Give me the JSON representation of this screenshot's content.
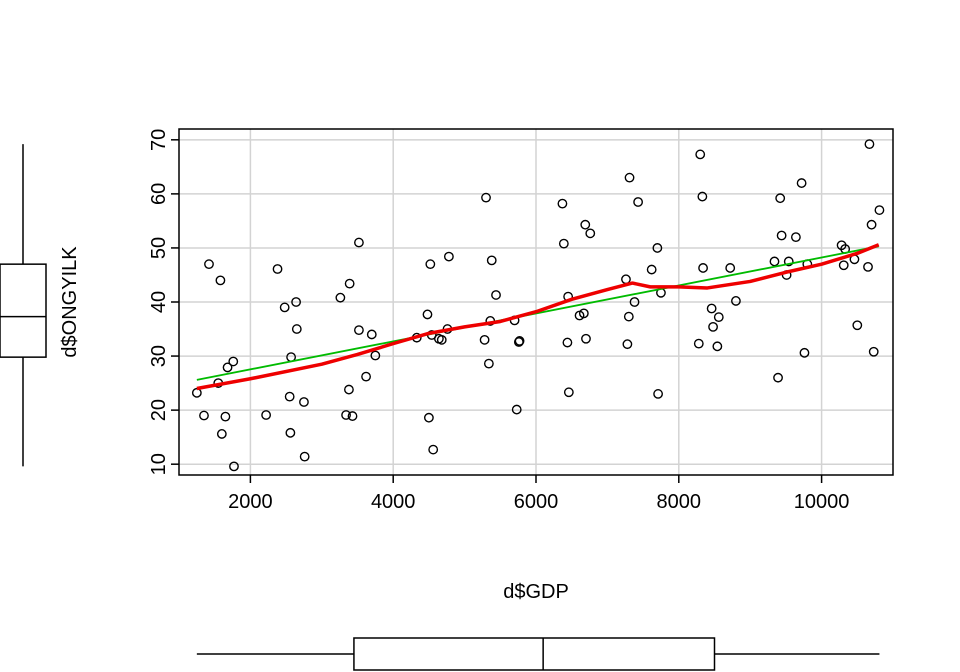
{
  "chart_data": {
    "type": "scatter",
    "title": "",
    "xlabel": "d$GDP",
    "ylabel": "d$ONGYILK",
    "xlim": [
      1000,
      11000
    ],
    "ylim": [
      8,
      72
    ],
    "x_ticks": [
      2000,
      4000,
      6000,
      8000,
      10000
    ],
    "y_ticks": [
      10,
      20,
      30,
      40,
      50,
      60,
      70
    ],
    "grid": true,
    "points": [
      [
        1250,
        23.2
      ],
      [
        1350,
        19.0
      ],
      [
        1420,
        47.0
      ],
      [
        1550,
        25.0
      ],
      [
        1580,
        44.0
      ],
      [
        1600,
        15.6
      ],
      [
        1650,
        18.8
      ],
      [
        1680,
        27.9
      ],
      [
        1760,
        29.0
      ],
      [
        1770,
        9.6
      ],
      [
        2220,
        19.1
      ],
      [
        2380,
        46.1
      ],
      [
        2480,
        39.0
      ],
      [
        2550,
        22.5
      ],
      [
        2560,
        15.8
      ],
      [
        2570,
        29.8
      ],
      [
        2640,
        40.0
      ],
      [
        2650,
        35.0
      ],
      [
        2750,
        21.5
      ],
      [
        2760,
        11.4
      ],
      [
        3260,
        40.8
      ],
      [
        3340,
        19.1
      ],
      [
        3380,
        23.8
      ],
      [
        3390,
        43.4
      ],
      [
        3430,
        18.9
      ],
      [
        3520,
        51.0
      ],
      [
        3520,
        34.8
      ],
      [
        3620,
        26.2
      ],
      [
        3700,
        34.0
      ],
      [
        3750,
        30.1
      ],
      [
        4330,
        33.4
      ],
      [
        4480,
        37.7
      ],
      [
        4500,
        18.6
      ],
      [
        4520,
        47.0
      ],
      [
        4540,
        33.9
      ],
      [
        4560,
        12.7
      ],
      [
        4640,
        33.2
      ],
      [
        4680,
        33.0
      ],
      [
        4760,
        35.0
      ],
      [
        4780,
        48.4
      ],
      [
        5280,
        33.0
      ],
      [
        5300,
        59.3
      ],
      [
        5340,
        28.6
      ],
      [
        5360,
        36.5
      ],
      [
        5380,
        47.7
      ],
      [
        5440,
        41.3
      ],
      [
        5700,
        36.6
      ],
      [
        5730,
        20.1
      ],
      [
        5760,
        32.6
      ],
      [
        5770,
        32.8
      ],
      [
        6370,
        58.2
      ],
      [
        6390,
        50.8
      ],
      [
        6440,
        32.5
      ],
      [
        6450,
        41.0
      ],
      [
        6460,
        23.3
      ],
      [
        6610,
        37.5
      ],
      [
        6670,
        37.9
      ],
      [
        6690,
        54.3
      ],
      [
        6700,
        33.2
      ],
      [
        6760,
        52.7
      ],
      [
        7260,
        44.2
      ],
      [
        7280,
        32.2
      ],
      [
        7300,
        37.3
      ],
      [
        7310,
        63.0
      ],
      [
        7380,
        40.0
      ],
      [
        7430,
        58.5
      ],
      [
        7620,
        46.0
      ],
      [
        7700,
        50.0
      ],
      [
        7710,
        23.0
      ],
      [
        7750,
        41.7
      ],
      [
        8280,
        32.3
      ],
      [
        8300,
        67.3
      ],
      [
        8330,
        59.5
      ],
      [
        8340,
        46.3
      ],
      [
        8460,
        38.8
      ],
      [
        8480,
        35.4
      ],
      [
        8540,
        31.8
      ],
      [
        8560,
        37.2
      ],
      [
        8720,
        46.3
      ],
      [
        8800,
        40.2
      ],
      [
        9340,
        47.5
      ],
      [
        9390,
        26.0
      ],
      [
        9420,
        59.2
      ],
      [
        9440,
        52.3
      ],
      [
        9510,
        45.0
      ],
      [
        9540,
        47.5
      ],
      [
        9640,
        52.0
      ],
      [
        9720,
        62.0
      ],
      [
        9760,
        30.6
      ],
      [
        9800,
        47.0
      ],
      [
        10280,
        50.5
      ],
      [
        10310,
        46.8
      ],
      [
        10330,
        49.8
      ],
      [
        10460,
        47.9
      ],
      [
        10500,
        35.7
      ],
      [
        10650,
        46.5
      ],
      [
        10670,
        69.2
      ],
      [
        10700,
        54.3
      ],
      [
        10730,
        30.8
      ],
      [
        10810,
        57.0
      ]
    ],
    "series": [
      {
        "type": "linear-fit",
        "color": "#00bb00",
        "x": [
          1250,
          10800
        ],
        "y": [
          25.6,
          50.3
        ]
      },
      {
        "type": "lowess",
        "color": "#ee0000",
        "x": [
          1250,
          2000,
          3000,
          3500,
          4000,
          4500,
          5000,
          5500,
          6000,
          6500,
          7000,
          7350,
          7600,
          8000,
          8400,
          9000,
          9500,
          10000,
          10500,
          10800
        ],
        "y": [
          24.0,
          25.8,
          28.5,
          30.3,
          32.3,
          34.2,
          35.4,
          36.4,
          38.2,
          40.5,
          42.3,
          43.5,
          42.8,
          42.8,
          42.6,
          43.8,
          45.5,
          47.0,
          49.0,
          50.6
        ]
      }
    ],
    "marginal_boxplots": {
      "x": {
        "min": 1250,
        "q1": 3450,
        "median": 6100,
        "q3": 8500,
        "max": 10810
      },
      "y": {
        "min": 9.6,
        "q1": 29.8,
        "median": 37.3,
        "q3": 47.0,
        "max": 69.2
      }
    }
  }
}
